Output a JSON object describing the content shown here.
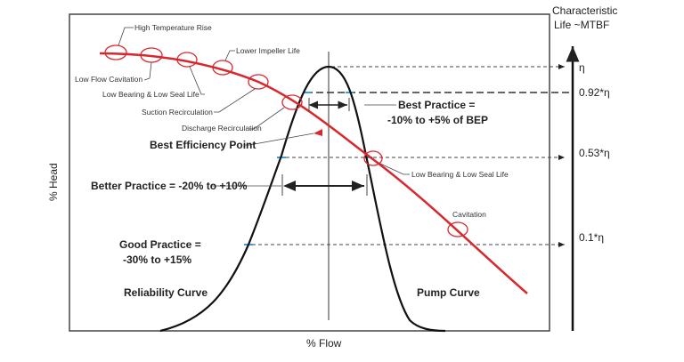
{
  "axes": {
    "x_label": "% Flow",
    "y_label": "% Head",
    "right_title_line1": "Characteristic",
    "right_title_line2": "Life ~MTBF",
    "right_ticks": [
      "η",
      "0.92*η",
      "0.53*η",
      "0.1*η"
    ]
  },
  "curves": {
    "reliability": "Reliability Curve",
    "pump": "Pump Curve"
  },
  "callouts": {
    "high_temp": "High Temperature Rise",
    "low_flow_cav": "Low Flow Cavitation",
    "low_bearing_1": "Low Bearing & Low Seal Life",
    "lower_impeller": "Lower Impeller Life",
    "suction_recirc": "Suction Recirculation",
    "discharge_recirc": "Discharge Recirculation",
    "bep": "Best Efficiency Point",
    "low_bearing_2": "Low Bearing & Low Seal Life",
    "cavitation": "Cavitation"
  },
  "practices": {
    "best_line1": "Best Practice =",
    "best_line2": "-10% to +5% of BEP",
    "better": "Better Practice = -20% to +10%",
    "good_line1": "Good Practice =",
    "good_line2": "-30% to +15%"
  },
  "colors": {
    "pump_curve": "#d9272e",
    "reliability_curve": "#111111",
    "markers": "#3aa0d8"
  }
}
